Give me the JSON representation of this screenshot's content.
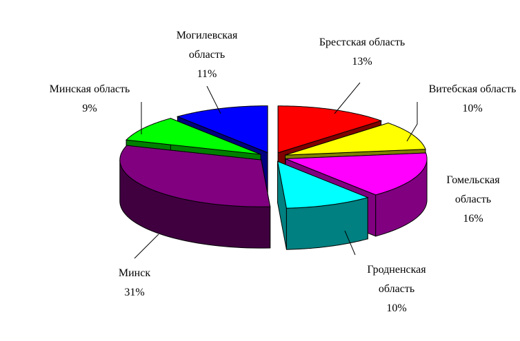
{
  "chart_data": {
    "type": "pie",
    "categories": [
      "Брестская область",
      "Витебская область",
      "Гомельская область",
      "Гродненская область",
      "Минск",
      "Минская область",
      "Могилевская область"
    ],
    "values": [
      13,
      10,
      16,
      10,
      31,
      9,
      11
    ],
    "value_labels": [
      "13%",
      "10%",
      "16%",
      "10%",
      "31%",
      "9%",
      "11%"
    ],
    "colors": [
      "#ff0000",
      "#ffff00",
      "#ff00ff",
      "#00ffff",
      "#800080",
      "#00ff00",
      "#0000ff"
    ]
  }
}
